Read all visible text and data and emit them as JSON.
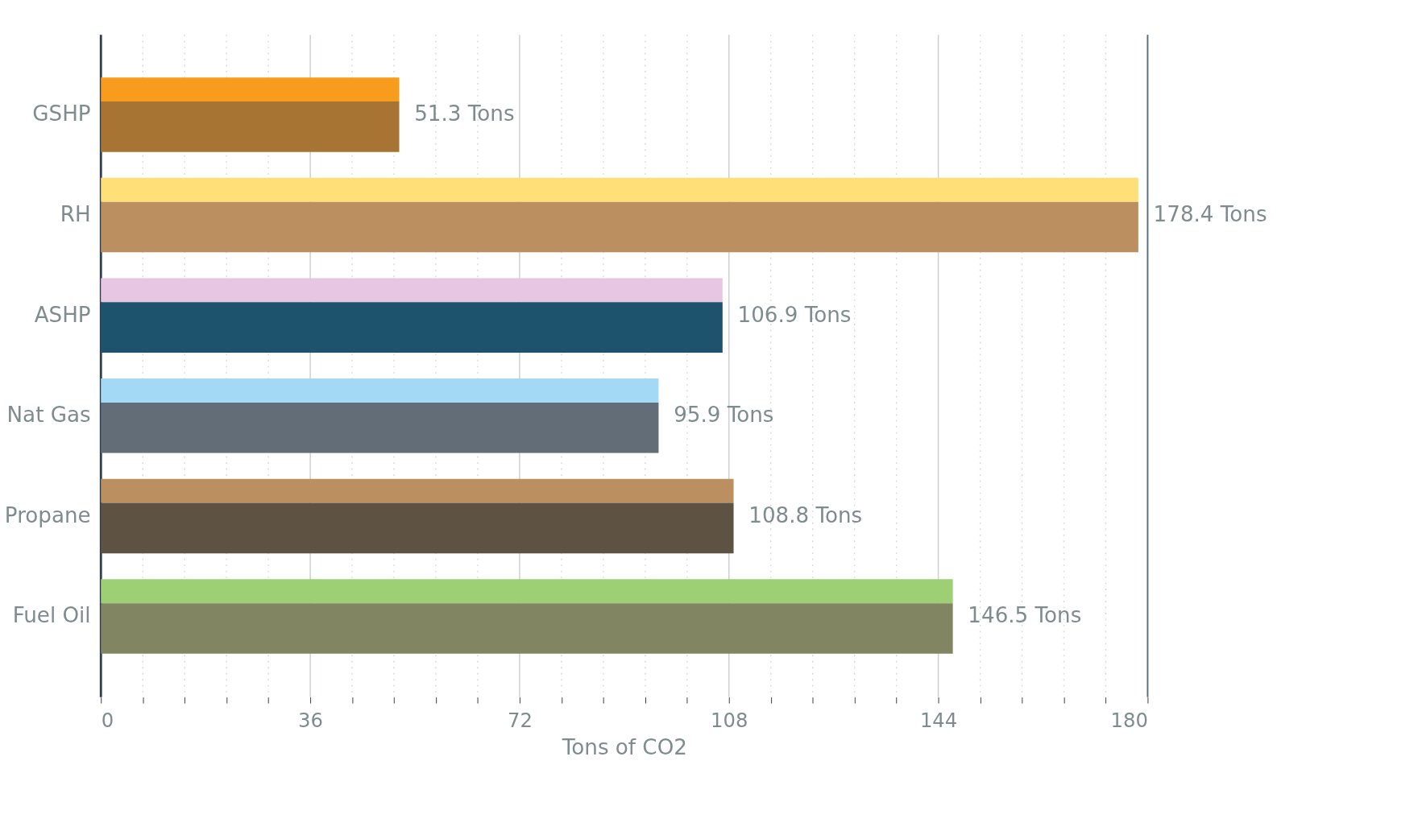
{
  "chart_data": {
    "type": "bar",
    "orientation": "horizontal",
    "xlabel": "Tons of CO2",
    "categories": [
      "GSHP",
      "RH",
      "ASHP",
      "Nat Gas",
      "Propane",
      "Fuel Oil"
    ],
    "series": [
      {
        "colors": [
          "#f89c1e",
          "#ffe078",
          "#e6c6e2",
          "#a3d9f5",
          "#bb8f5f",
          "#9dcf74"
        ],
        "values": [
          51.3,
          178.4,
          106.9,
          95.9,
          108.8,
          146.5
        ]
      },
      {
        "colors": [
          "#a87434",
          "#bb8f5f",
          "#1d536d",
          "#636d78",
          "#5e5242",
          "#818561"
        ],
        "values": [
          51.3,
          178.4,
          106.9,
          95.9,
          108.8,
          146.5
        ],
        "value_labels": [
          "51.3 Tons",
          "178.4 Tons",
          "106.9 Tons",
          "95.9 Tons",
          "108.8 Tons",
          "146.5 Tons"
        ]
      }
    ],
    "xlim": [
      0,
      180
    ],
    "xticks": [
      0,
      {
        "value": 7.2,
        "label": null
      },
      {
        "value": 14.4,
        "label": null
      },
      {
        "value": 21.6,
        "label": null
      },
      {
        "value": 28.8,
        "label": null
      },
      36,
      {
        "value": 43.2,
        "label": null
      },
      {
        "value": 50.4,
        "label": null
      },
      {
        "value": 57.6,
        "label": null
      },
      {
        "value": 64.8,
        "label": null
      },
      72,
      {
        "value": 79.2,
        "label": null
      },
      {
        "value": 86.4,
        "label": null
      },
      {
        "value": 93.6,
        "label": null
      },
      {
        "value": 100.8,
        "label": null
      },
      108,
      {
        "value": 115.2,
        "label": null
      },
      {
        "value": 122.4,
        "label": null
      },
      {
        "value": 129.6,
        "label": null
      },
      {
        "value": 136.8,
        "label": null
      },
      144,
      {
        "value": 151.2,
        "label": null
      },
      {
        "value": 158.4,
        "label": null
      },
      {
        "value": 165.6,
        "label": null
      },
      {
        "value": 172.8,
        "label": null
      },
      180
    ],
    "grid": "x"
  }
}
